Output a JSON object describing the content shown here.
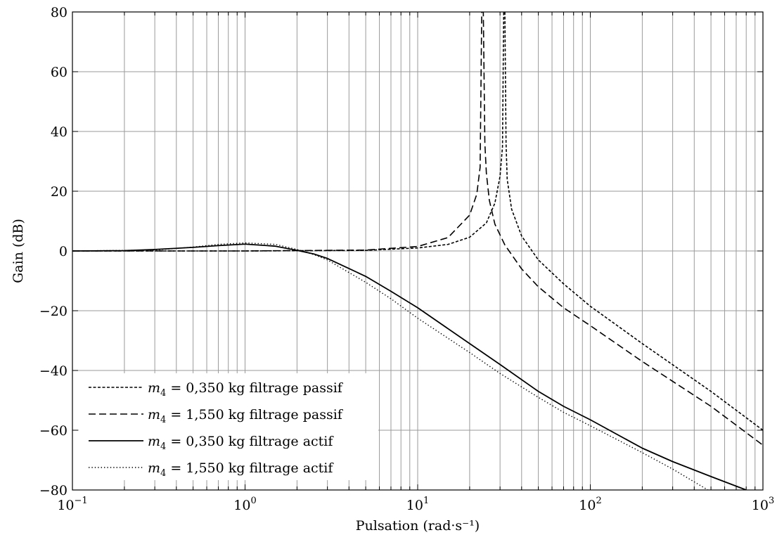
{
  "chart_data": {
    "type": "line",
    "xlabel": "Pulsation (rad·s⁻¹)",
    "ylabel": "Gain (dB)",
    "xscale": "log",
    "xlim": [
      0.1,
      1000
    ],
    "ylim": [
      -80,
      80
    ],
    "grid": true,
    "legend_position": "bottom-left",
    "xticks": [
      {
        "value": 0.1,
        "base": "10",
        "exp": "−1"
      },
      {
        "value": 1,
        "base": "10",
        "exp": "0"
      },
      {
        "value": 10,
        "base": "10",
        "exp": "1"
      },
      {
        "value": 100,
        "base": "10",
        "exp": "2"
      },
      {
        "value": 1000,
        "base": "10",
        "exp": "3"
      }
    ],
    "yticks": [
      {
        "value": -80,
        "label": "−80"
      },
      {
        "value": -60,
        "label": "−60"
      },
      {
        "value": -40,
        "label": "−40"
      },
      {
        "value": -20,
        "label": "−20"
      },
      {
        "value": 0,
        "label": "0"
      },
      {
        "value": 20,
        "label": "20"
      },
      {
        "value": 40,
        "label": "40"
      },
      {
        "value": 60,
        "label": "60"
      },
      {
        "value": 80,
        "label": "80"
      }
    ],
    "series": [
      {
        "name": "m4 = 0,350 kg filtrage passif",
        "legend": {
          "var": "m",
          "sub": "4",
          "rest": " = 0,350 kg filtrage passif"
        },
        "style": "densely-dashed",
        "x": [
          0.1,
          1,
          5,
          10,
          15,
          20,
          25,
          28,
          30,
          31,
          31.5,
          32,
          32.5,
          33,
          35,
          40,
          50,
          70,
          100,
          200,
          500,
          1000
        ],
        "y": [
          0,
          0,
          0.2,
          1,
          2.2,
          4.6,
          9.4,
          16,
          25,
          35,
          80,
          80,
          36,
          24,
          14,
          5,
          -3,
          -11,
          -18.5,
          -31,
          -47,
          -60
        ]
      },
      {
        "name": "m4 = 1,550 kg filtrage passif",
        "legend": {
          "var": "m",
          "sub": "4",
          "rest": " = 1,550 kg filtrage passif"
        },
        "style": "dashed",
        "x": [
          0.1,
          1,
          5,
          10,
          15,
          20,
          22,
          23,
          23.5,
          24,
          24.5,
          25,
          26,
          28,
          32,
          40,
          50,
          70,
          100,
          200,
          500,
          1000
        ],
        "y": [
          0,
          0,
          0.3,
          1.5,
          4.5,
          12,
          19,
          28,
          80,
          80,
          36,
          26,
          17,
          9,
          2,
          -6,
          -12,
          -19,
          -25,
          -37,
          -52,
          -65
        ]
      },
      {
        "name": "m4 = 0,350 kg filtrage actif",
        "legend": {
          "var": "m",
          "sub": "4",
          "rest": " = 0,350 kg filtrage actif"
        },
        "style": "solid",
        "x": [
          0.1,
          0.2,
          0.3,
          0.5,
          0.7,
          1,
          1.5,
          2,
          2.5,
          3,
          5,
          7,
          10,
          20,
          30,
          50,
          70,
          100,
          200,
          300,
          500,
          800
        ],
        "y": [
          0,
          0.1,
          0.5,
          1.2,
          1.8,
          2.3,
          1.6,
          0.2,
          -1,
          -2.5,
          -8.5,
          -13.5,
          -19,
          -31,
          -38,
          -47,
          -52,
          -56.5,
          -66,
          -70.5,
          -75.5,
          -80
        ]
      },
      {
        "name": "m4 = 1,550 kg filtrage actif",
        "legend": {
          "var": "m",
          "sub": "4",
          "rest": " = 1,550 kg filtrage actif"
        },
        "style": "dotted",
        "x": [
          0.1,
          0.3,
          0.5,
          0.7,
          1,
          1.5,
          2,
          2.5,
          3,
          5,
          7,
          10,
          20,
          30,
          50,
          70,
          100,
          200,
          300,
          480
        ],
        "y": [
          0,
          0.3,
          1.3,
          2.2,
          2.7,
          2.2,
          0.5,
          -1.2,
          -3,
          -10.5,
          -16,
          -22.5,
          -34,
          -41,
          -49,
          -54,
          -58.5,
          -67.5,
          -73,
          -80
        ]
      }
    ]
  }
}
